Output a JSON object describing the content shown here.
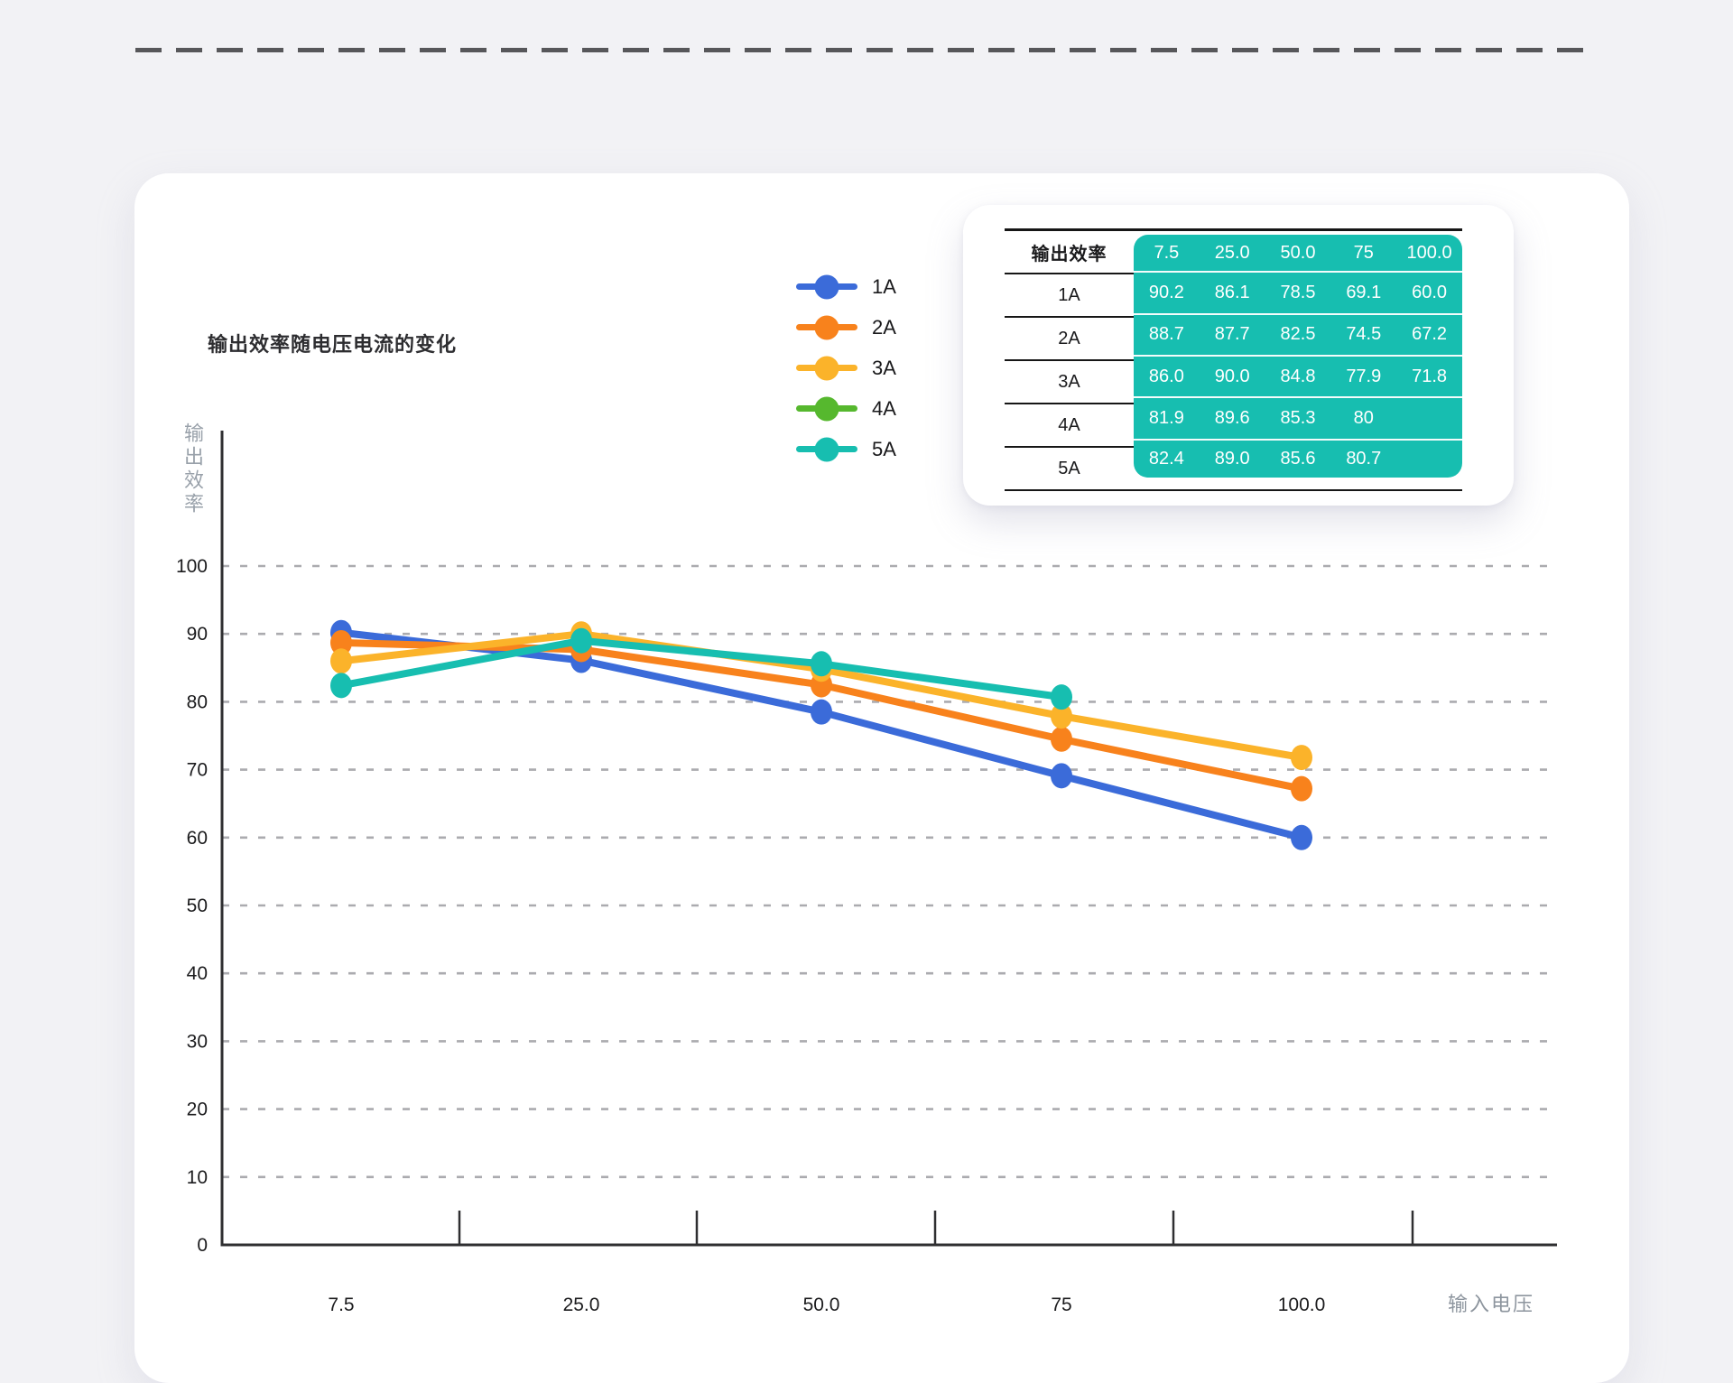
{
  "chart_data": {
    "type": "line",
    "title": "输出效率随电压电流的变化",
    "xlabel": "输入电压",
    "ylabel": "输出效率",
    "categories": [
      7.5,
      25.0,
      50.0,
      75,
      100.0
    ],
    "category_labels": [
      "7.5",
      "25.0",
      "50.0",
      "75",
      "100.0"
    ],
    "ylim": [
      0,
      100
    ],
    "ytick_step": 10,
    "grid": "horizontal-dashed",
    "legend_position": "top-center-vertical",
    "series": [
      {
        "name": "1A",
        "color": "#3b6bd9",
        "values": [
          90.2,
          86.1,
          78.5,
          69.1,
          60.0
        ],
        "plotted": true
      },
      {
        "name": "2A",
        "color": "#f8821c",
        "values": [
          88.7,
          87.7,
          82.5,
          74.5,
          67.2
        ],
        "plotted": true
      },
      {
        "name": "3A",
        "color": "#fbb32a",
        "values": [
          86.0,
          90.0,
          84.8,
          77.9,
          71.8
        ],
        "plotted": true
      },
      {
        "name": "4A",
        "color": "#56b82e",
        "values": [
          81.9,
          89.6,
          85.3,
          80.0,
          null
        ],
        "plotted": false
      },
      {
        "name": "5A",
        "color": "#17beb0",
        "values": [
          82.4,
          89.0,
          85.6,
          80.7,
          null
        ],
        "plotted": true
      }
    ]
  },
  "table": {
    "header_label": "输出效率",
    "columns": [
      "7.5",
      "25.0",
      "50.0",
      "75",
      "100.0"
    ],
    "rows": [
      {
        "label": "1A",
        "cells": [
          "90.2",
          "86.1",
          "78.5",
          "69.1",
          "60.0"
        ]
      },
      {
        "label": "2A",
        "cells": [
          "88.7",
          "87.7",
          "82.5",
          "74.5",
          "67.2"
        ]
      },
      {
        "label": "3A",
        "cells": [
          "86.0",
          "90.0",
          "84.8",
          "77.9",
          "71.8"
        ]
      },
      {
        "label": "4A",
        "cells": [
          "81.9",
          "89.6",
          "85.3",
          "80",
          ""
        ]
      },
      {
        "label": "5A",
        "cells": [
          "82.4",
          "89.0",
          "85.6",
          "80.7",
          ""
        ]
      }
    ],
    "panel_color": "#17beb0"
  },
  "colors": {
    "axis": "#2f2f31",
    "grid": "#ababaf",
    "tick_text": "#1c1c1e",
    "axis_title_text": "#8d959e",
    "divider": "#57575a"
  }
}
